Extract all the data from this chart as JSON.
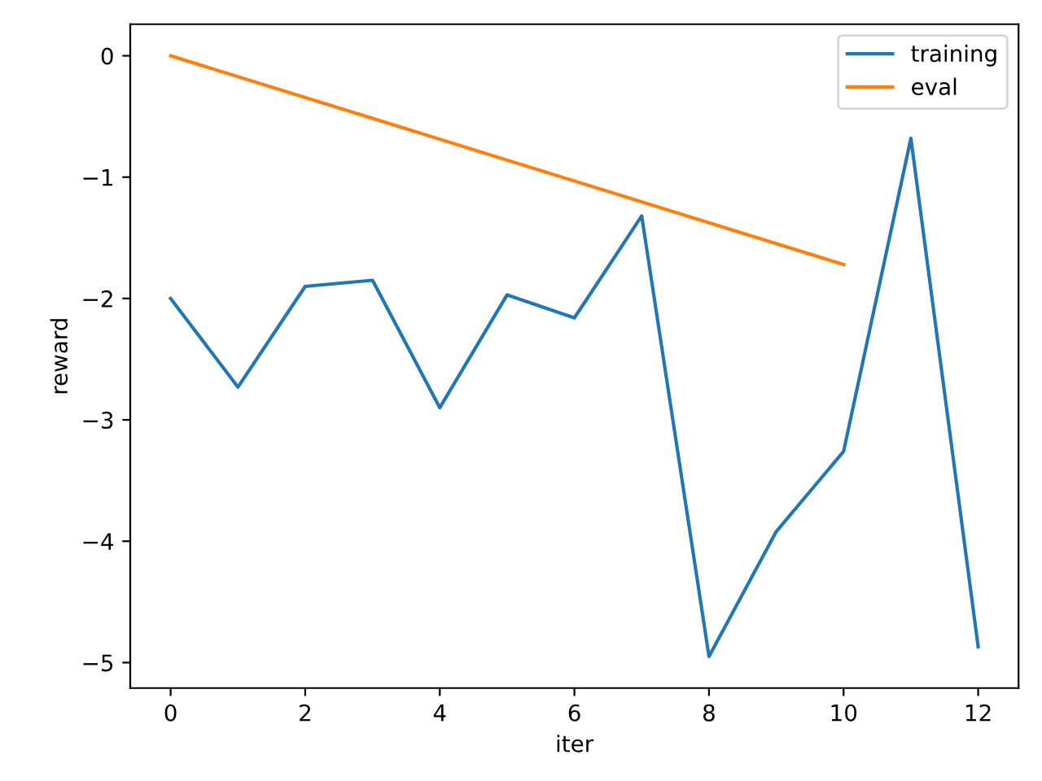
{
  "chart_data": {
    "type": "line",
    "xlabel": "iter",
    "ylabel": "reward",
    "series": [
      {
        "name": "training",
        "color": "#1f77b4",
        "x": [
          0,
          1,
          2,
          3,
          4,
          5,
          6,
          7,
          8,
          9,
          10,
          11,
          12
        ],
        "values": [
          -2.0,
          -2.73,
          -1.9,
          -1.85,
          -2.9,
          -1.97,
          -2.16,
          -1.32,
          -4.95,
          -3.92,
          -3.26,
          -0.68,
          -4.87
        ]
      },
      {
        "name": "eval",
        "color": "#ff7f0e",
        "x": [
          0,
          10
        ],
        "values": [
          0.0,
          -1.72
        ]
      }
    ],
    "xlim": [
      -0.6,
      12.6
    ],
    "ylim": [
      -5.21,
      0.26
    ],
    "xticks": [
      0,
      2,
      4,
      6,
      8,
      10,
      12
    ],
    "yticks": [
      -5,
      -4,
      -3,
      -2,
      -1,
      0
    ],
    "grid": false,
    "legend": "top right",
    "marker": "none",
    "line_style": "solid"
  }
}
